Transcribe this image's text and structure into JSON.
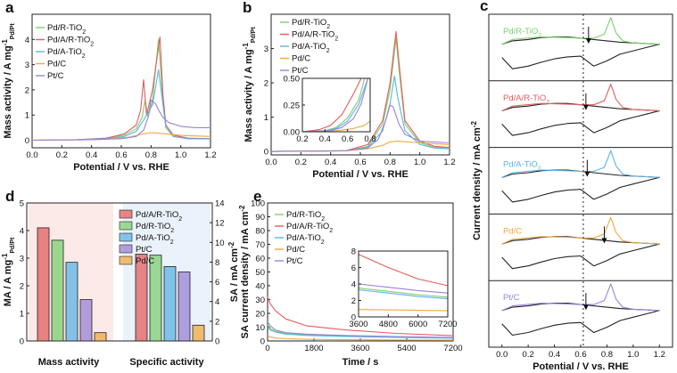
{
  "colors": {
    "Pd/R-TiO2": "#7ccf6f",
    "Pd/A/R-TiO2": "#e35d5d",
    "Pd/A-TiO2": "#5bb3e6",
    "Pd/C": "#f0a840",
    "Pt/C": "#9b82d6",
    "ref": "#222222"
  },
  "chart_data": [
    {
      "id": "a",
      "label": "a",
      "type": "line",
      "xlabel": "Potential / V vs. RHE",
      "ylabel": "Mass activity / A mg",
      "ylabel_sup": "-1",
      "ylabel_sub": "Pd/Pt",
      "xlim": [
        0.0,
        1.2
      ],
      "ylim": [
        -0.3,
        5.0
      ],
      "xticks": [
        0.0,
        0.2,
        0.4,
        0.6,
        0.8,
        1.0,
        1.2
      ],
      "yticks": [
        0,
        1,
        2,
        3,
        4
      ],
      "xtick_labels": [
        "0.0",
        "0.2",
        "0.4",
        "0.6",
        "0.8",
        "1.0",
        "1.2"
      ],
      "ytick_labels": [
        "0",
        "1",
        "2",
        "3",
        "4"
      ],
      "legend": [
        "Pd/R-TiO2",
        "Pd/A/R-TiO2",
        "Pd/A-TiO2",
        "Pd/C",
        "Pt/C"
      ],
      "legend_position": "top-left",
      "series": [
        {
          "name": "Pd/R-TiO2",
          "x": [
            0.0,
            0.3,
            0.5,
            0.62,
            0.7,
            0.74,
            0.76,
            0.78,
            0.81,
            0.85,
            0.88,
            0.9,
            0.95,
            1.05,
            1.2
          ],
          "y": [
            0.0,
            0.02,
            0.08,
            0.2,
            0.45,
            0.9,
            1.6,
            0.9,
            1.6,
            4.0,
            1.5,
            0.5,
            0.15,
            0.06,
            0.05
          ]
        },
        {
          "name": "Pd/A/R-TiO2",
          "x": [
            0.0,
            0.3,
            0.5,
            0.62,
            0.7,
            0.73,
            0.75,
            0.77,
            0.81,
            0.86,
            0.88,
            0.9,
            0.95,
            1.05,
            1.2
          ],
          "y": [
            0.0,
            0.02,
            0.08,
            0.25,
            0.6,
            1.2,
            2.4,
            1.0,
            2.0,
            4.1,
            1.8,
            0.6,
            0.2,
            0.08,
            0.06
          ]
        },
        {
          "name": "Pd/A-TiO2",
          "x": [
            0.0,
            0.3,
            0.5,
            0.62,
            0.7,
            0.75,
            0.78,
            0.81,
            0.85,
            0.88,
            0.9,
            0.95,
            1.05,
            1.2
          ],
          "y": [
            0.0,
            0.02,
            0.06,
            0.15,
            0.35,
            0.8,
            1.1,
            1.4,
            2.8,
            1.4,
            0.5,
            0.15,
            0.06,
            0.05
          ]
        },
        {
          "name": "Pd/C",
          "x": [
            0.0,
            0.3,
            0.5,
            0.65,
            0.75,
            0.8,
            0.85,
            0.95,
            1.05,
            1.2
          ],
          "y": [
            0.0,
            0.01,
            0.04,
            0.12,
            0.25,
            0.3,
            0.28,
            0.22,
            0.18,
            0.15
          ]
        },
        {
          "name": "Pt/C",
          "x": [
            0.0,
            0.4,
            0.6,
            0.7,
            0.75,
            0.78,
            0.8,
            0.83,
            0.85,
            0.88,
            0.92,
            1.0,
            1.1,
            1.2
          ],
          "y": [
            0.0,
            0.02,
            0.06,
            0.15,
            0.4,
            0.9,
            1.6,
            1.45,
            1.2,
            0.9,
            0.7,
            0.55,
            0.5,
            0.5
          ]
        }
      ]
    },
    {
      "id": "b",
      "label": "b",
      "type": "line",
      "xlabel": "Potential / V vs. RHE",
      "ylabel": "Mass activity / A mg",
      "ylabel_sup": "-1",
      "ylabel_sub": "Pd/Pt",
      "xlim": [
        0.0,
        1.2
      ],
      "ylim": [
        -0.1,
        4.0
      ],
      "xticks": [
        0.0,
        0.2,
        0.4,
        0.6,
        0.8,
        1.0,
        1.2
      ],
      "yticks": [
        0,
        1,
        2,
        3
      ],
      "xtick_labels": [
        "0.0",
        "0.2",
        "0.4",
        "0.6",
        "0.8",
        "1.0",
        "1.2"
      ],
      "ytick_labels": [
        "0",
        "1",
        "2",
        "3"
      ],
      "legend": [
        "Pd/R-TiO2",
        "Pd/A/R-TiO2",
        "Pd/A-TiO2",
        "Pd/C",
        "Pt/C"
      ],
      "legend_position": "top-right",
      "series": [
        {
          "name": "Pd/R-TiO2",
          "x": [
            0.0,
            0.5,
            0.65,
            0.75,
            0.8,
            0.84,
            0.86,
            0.9,
            1.0,
            1.1,
            1.2
          ],
          "y": [
            0.0,
            0.02,
            0.15,
            0.8,
            1.8,
            3.3,
            2.4,
            0.8,
            0.25,
            0.12,
            0.1
          ]
        },
        {
          "name": "Pd/A/R-TiO2",
          "x": [
            0.0,
            0.5,
            0.65,
            0.75,
            0.8,
            0.84,
            0.86,
            0.9,
            1.0,
            1.1,
            1.2
          ],
          "y": [
            0.0,
            0.02,
            0.2,
            0.9,
            2.0,
            3.5,
            2.6,
            0.9,
            0.3,
            0.15,
            0.12
          ]
        },
        {
          "name": "Pd/A-TiO2",
          "x": [
            0.0,
            0.5,
            0.65,
            0.75,
            0.8,
            0.83,
            0.85,
            0.9,
            1.0,
            1.1,
            1.2
          ],
          "y": [
            0.0,
            0.02,
            0.12,
            0.6,
            1.4,
            2.2,
            1.6,
            0.6,
            0.2,
            0.1,
            0.08
          ]
        },
        {
          "name": "Pd/C",
          "x": [
            0.0,
            0.5,
            0.65,
            0.75,
            0.8,
            0.85,
            1.0,
            1.2
          ],
          "y": [
            0.0,
            0.02,
            0.08,
            0.18,
            0.28,
            0.3,
            0.25,
            0.2
          ]
        },
        {
          "name": "Pt/C",
          "x": [
            0.0,
            0.5,
            0.65,
            0.72,
            0.77,
            0.8,
            0.82,
            0.86,
            0.9,
            1.0,
            1.2
          ],
          "y": [
            0.0,
            0.02,
            0.1,
            0.35,
            0.9,
            1.35,
            1.3,
            0.8,
            0.5,
            0.3,
            0.25
          ]
        }
      ],
      "inset": {
        "xlim": [
          0.2,
          0.8
        ],
        "ylim": [
          0.0,
          0.5
        ],
        "xticks": [
          0.2,
          0.4,
          0.6,
          0.8
        ],
        "yticks": [
          0.0,
          0.25,
          0.5
        ],
        "xtick_labels": [
          "0.2",
          "0.4",
          "0.6",
          "0.8"
        ],
        "ytick_labels": [
          "0.00",
          "0.25",
          "0.50"
        ],
        "series": [
          {
            "name": "Pd/R-TiO2",
            "x": [
              0.2,
              0.4,
              0.5,
              0.6,
              0.7,
              0.75
            ],
            "y": [
              0.0,
              0.01,
              0.04,
              0.13,
              0.3,
              0.5
            ]
          },
          {
            "name": "Pd/A/R-TiO2",
            "x": [
              0.2,
              0.35,
              0.45,
              0.55,
              0.65,
              0.72
            ],
            "y": [
              0.0,
              0.02,
              0.06,
              0.16,
              0.35,
              0.5
            ]
          },
          {
            "name": "Pd/A-TiO2",
            "x": [
              0.2,
              0.4,
              0.5,
              0.6,
              0.7,
              0.78
            ],
            "y": [
              0.0,
              0.01,
              0.03,
              0.1,
              0.26,
              0.5
            ]
          },
          {
            "name": "Pd/C",
            "x": [
              0.2,
              0.5,
              0.65,
              0.75,
              0.8
            ],
            "y": [
              0.0,
              0.01,
              0.03,
              0.06,
              0.1
            ]
          },
          {
            "name": "Pt/C",
            "x": [
              0.2,
              0.45,
              0.55,
              0.65,
              0.72,
              0.78
            ],
            "y": [
              0.0,
              0.01,
              0.04,
              0.12,
              0.26,
              0.5
            ]
          }
        ]
      }
    },
    {
      "id": "c",
      "label": "c",
      "type": "line",
      "xlabel": "Potential / V vs. RHE",
      "ylabel": "Current density / mA cm",
      "ylabel_sup": "-2",
      "xlim": [
        -0.1,
        1.3
      ],
      "xticks": [
        0.0,
        0.2,
        0.4,
        0.6,
        0.8,
        1.0,
        1.2
      ],
      "xtick_labels": [
        "0.0",
        "0.2",
        "0.4",
        "0.6",
        "0.8",
        "1.0",
        "1.2"
      ],
      "dashed_line_x": 0.62,
      "panels": [
        {
          "name": "Pd/R-TiO2",
          "arrow_x": 0.66
        },
        {
          "name": "Pd/A/R-TiO2",
          "arrow_x": 0.64
        },
        {
          "name": "Pd/A-TiO2",
          "arrow_x": 0.65
        },
        {
          "name": "Pd/C",
          "arrow_x": 0.78
        },
        {
          "name": "Pt/C",
          "arrow_x": 0.64
        }
      ]
    },
    {
      "id": "d",
      "label": "d",
      "type": "bar",
      "ylabel_left": "MA / A mg",
      "ylabel_left_sup": "-1",
      "ylabel_left_sub": "Pd/Pt",
      "ylabel_right": "SA / mA cm",
      "ylabel_right_sup": "-2",
      "ylim_left": [
        0,
        5
      ],
      "ylim_right": [
        0,
        14
      ],
      "yticks_left": [
        0,
        1,
        2,
        3,
        4,
        5
      ],
      "yticks_right": [
        0,
        2,
        4,
        6,
        8,
        10,
        12,
        14
      ],
      "ytick_labels_left": [
        "0",
        "1",
        "2",
        "3",
        "4",
        "5"
      ],
      "ytick_labels_right": [
        "0",
        "2",
        "4",
        "6",
        "8",
        "10",
        "12",
        "14"
      ],
      "categories": [
        "Mass activity",
        "Specific activity"
      ],
      "legend": [
        "Pd/A/R-TiO2",
        "Pd/R-TiO2",
        "Pd/A-TiO2",
        "Pt/C",
        "Pd/C"
      ],
      "legend_position": "top-right",
      "series": [
        {
          "name": "Pd/A/R-TiO2",
          "values": [
            4.1,
            8.8
          ]
        },
        {
          "name": "Pd/R-TiO2",
          "values": [
            3.65,
            8.7
          ]
        },
        {
          "name": "Pd/A-TiO2",
          "values": [
            2.85,
            7.55
          ]
        },
        {
          "name": "Pt/C",
          "values": [
            1.5,
            7.0
          ]
        },
        {
          "name": "Pd/C",
          "values": [
            0.3,
            1.6
          ]
        }
      ]
    },
    {
      "id": "e",
      "label": "e",
      "type": "line",
      "xlabel": "Time / s",
      "ylabel": "SA current density / mA cm",
      "ylabel_sup": "-2",
      "xlim": [
        0,
        7200
      ],
      "ylim": [
        0,
        100
      ],
      "xticks": [
        0,
        1800,
        3600,
        5400,
        7200
      ],
      "yticks": [
        0,
        10,
        20,
        30,
        40,
        50,
        60,
        70,
        80,
        90,
        100
      ],
      "xtick_labels": [
        "0",
        "1800",
        "3600",
        "5400",
        "7200"
      ],
      "ytick_labels": [
        "0",
        "10",
        "20",
        "30",
        "40",
        "50",
        "60",
        "70",
        "80",
        "90",
        "100"
      ],
      "legend": [
        "Pd/R-TiO2",
        "Pd/A/R-TiO2",
        "Pd/A-TiO2",
        "Pd/C",
        "Pt/C"
      ],
      "legend_position": "top-left",
      "series": [
        {
          "name": "Pd/R-TiO2",
          "x": [
            0,
            100,
            300,
            700,
            1500,
            3000,
            5000,
            7200
          ],
          "y": [
            12,
            9,
            7,
            5.5,
            4.5,
            3.5,
            2.8,
            2.3
          ]
        },
        {
          "name": "Pd/A/R-TiO2",
          "x": [
            0,
            100,
            300,
            700,
            1500,
            3000,
            5000,
            7200
          ],
          "y": [
            32,
            27,
            22,
            16,
            11,
            8,
            5.5,
            3.8
          ]
        },
        {
          "name": "Pd/A-TiO2",
          "x": [
            0,
            100,
            300,
            700,
            1500,
            3000,
            5000,
            7200
          ],
          "y": [
            10,
            8,
            6.5,
            5,
            4,
            3.2,
            2.5,
            2.0
          ]
        },
        {
          "name": "Pd/C",
          "x": [
            0,
            100,
            300,
            700,
            1500,
            3000,
            5000,
            7200
          ],
          "y": [
            4,
            3,
            2.2,
            1.6,
            1.2,
            0.9,
            0.7,
            0.6
          ]
        },
        {
          "name": "Pt/C",
          "x": [
            0,
            100,
            300,
            700,
            1500,
            3000,
            5000,
            7200
          ],
          "y": [
            14,
            11,
            8,
            6,
            5,
            4,
            3.2,
            2.6
          ]
        }
      ],
      "inset": {
        "xlim": [
          3600,
          7200
        ],
        "ylim": [
          0,
          8
        ],
        "xticks": [
          3600,
          4800,
          6000,
          7200
        ],
        "yticks": [
          0,
          2,
          4,
          6,
          8
        ],
        "xtick_labels": [
          "3600",
          "4800",
          "6000",
          "7200"
        ],
        "ytick_labels": [
          "0",
          "2",
          "4",
          "6",
          "8"
        ],
        "series": [
          {
            "name": "Pd/R-TiO2",
            "x": [
              3600,
              4800,
              6000,
              7200
            ],
            "y": [
              3.5,
              3.1,
              2.7,
              2.4
            ]
          },
          {
            "name": "Pd/A/R-TiO2",
            "x": [
              3600,
              4800,
              6000,
              7200
            ],
            "y": [
              7.6,
              6.0,
              4.6,
              3.8
            ]
          },
          {
            "name": "Pd/A-TiO2",
            "x": [
              3600,
              4800,
              6000,
              7200
            ],
            "y": [
              3.3,
              2.9,
              2.5,
              2.2
            ]
          },
          {
            "name": "Pd/C",
            "x": [
              3600,
              4800,
              6000,
              7200
            ],
            "y": [
              0.9,
              0.85,
              0.8,
              0.75
            ]
          },
          {
            "name": "Pt/C",
            "x": [
              3600,
              4800,
              6000,
              7200
            ],
            "y": [
              4.0,
              3.6,
              3.2,
              2.9
            ]
          }
        ]
      }
    }
  ]
}
